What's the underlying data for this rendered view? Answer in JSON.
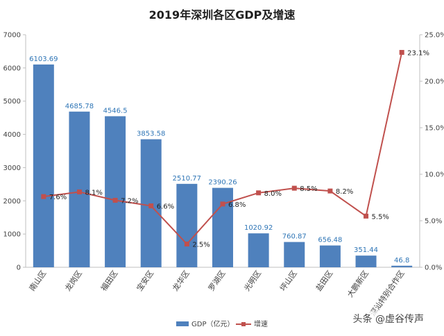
{
  "title": "2019年深圳各区GDP及增速",
  "watermark": "头条 @虚谷传声",
  "colors": {
    "bar": "#4f81bd",
    "line": "#c0504d",
    "bar_label": "#2e75b6",
    "axis": "#bfbfbf",
    "text": "#404040"
  },
  "chart_data": {
    "type": "bar+line",
    "categories": [
      "南山区",
      "龙岗区",
      "福田区",
      "宝安区",
      "龙华区",
      "罗湖区",
      "光明区",
      "坪山区",
      "盐田区",
      "大鹏新区",
      "深汕特别合作区"
    ],
    "series": [
      {
        "name": "GDP（亿元）",
        "type": "bar",
        "axis": "left",
        "values": [
          6103.69,
          4685.78,
          4546.5,
          3853.58,
          2510.77,
          2390.26,
          1020.92,
          760.87,
          656.48,
          351.44,
          46.8
        ],
        "labels": [
          "6103.69",
          "4685.78",
          "4546.5",
          "3853.58",
          "2510.77",
          "2390.26",
          "1020.92",
          "760.87",
          "656.48",
          "351.44",
          "46.8"
        ]
      },
      {
        "name": "增速",
        "type": "line",
        "axis": "right",
        "values": [
          7.6,
          8.1,
          7.2,
          6.6,
          2.5,
          6.8,
          8.0,
          8.5,
          8.2,
          5.5,
          23.1
        ],
        "labels": [
          "7.6%",
          "8.1%",
          "7.2%",
          "6.6%",
          "2.5%",
          "6.8%",
          "8.0%",
          "8.5%",
          "8.2%",
          "5.5%",
          "23.1%"
        ]
      }
    ],
    "y_left": {
      "min": 0,
      "max": 7000,
      "ticks": [
        0,
        1000,
        2000,
        3000,
        4000,
        5000,
        6000,
        7000
      ],
      "tick_labels": [
        "0",
        "1000",
        "2000",
        "3000",
        "4000",
        "5000",
        "6000",
        "7000"
      ]
    },
    "y_right": {
      "min": 0,
      "max": 25,
      "ticks": [
        0,
        5,
        10,
        15,
        20,
        25
      ],
      "tick_labels": [
        "0.0%",
        "5.0%",
        "10.0%",
        "15.0%",
        "20.0%",
        "25.0%"
      ]
    },
    "legend": {
      "position": "bottom",
      "items": [
        "GDP（亿元）",
        "增速"
      ]
    },
    "grid": false
  }
}
